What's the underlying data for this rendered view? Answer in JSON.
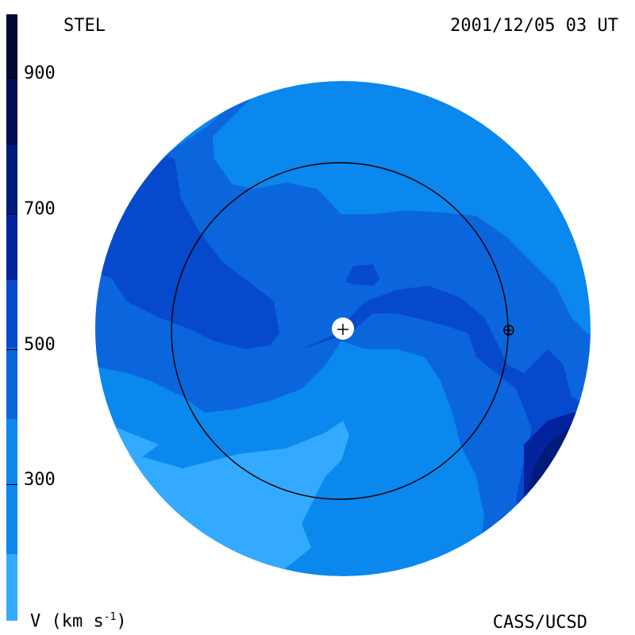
{
  "header": {
    "observatory": "STEL",
    "timestamp": "2001/12/05 03 UT"
  },
  "footer": {
    "units_main": "V (km s",
    "units_exp": "-1",
    "units_close": ")",
    "credit": "CASS/UCSD"
  },
  "colorbar": {
    "ticks": [
      "900",
      "700",
      "500",
      "300"
    ],
    "colors": [
      "#a6d8fa",
      "#33aaff",
      "#0a88ee",
      "#0b66dd",
      "#0649cc",
      "#03229e",
      "#001b7a",
      "#000d55",
      "#000833"
    ]
  },
  "map": {
    "markers": [
      "sun-marker",
      "earth-marker"
    ]
  }
}
